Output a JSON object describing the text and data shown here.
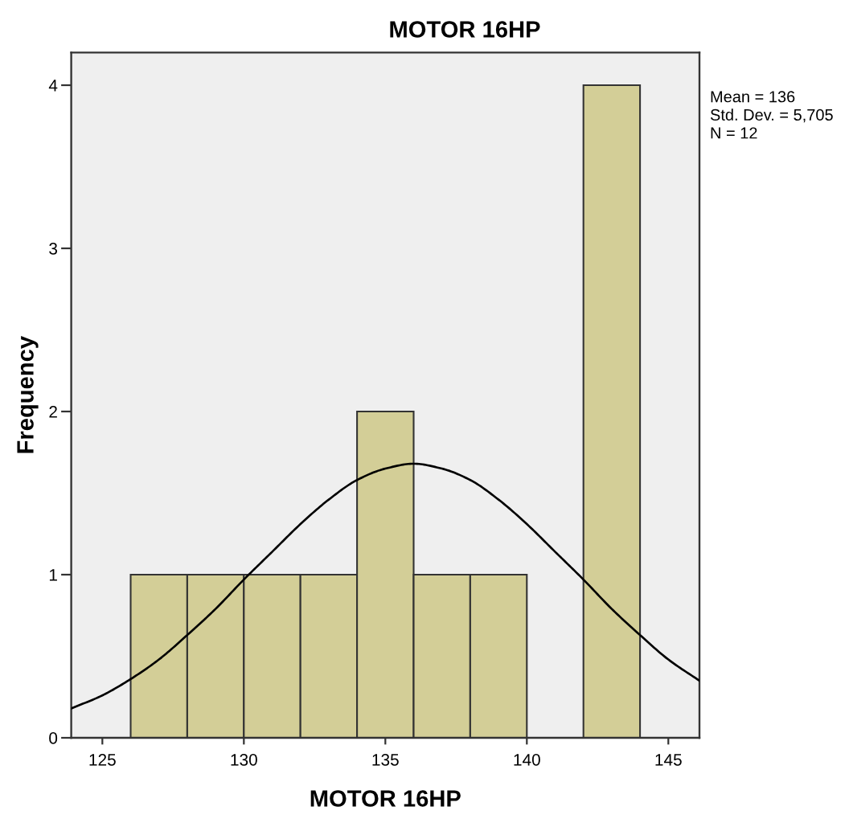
{
  "chart_data": {
    "type": "histogram",
    "title": "MOTOR 16HP",
    "xlabel": "MOTOR 16HP",
    "ylabel": "Frequency",
    "series": [
      {
        "color": "#d3ce97",
        "bins": [
          126,
          128,
          130,
          132,
          134,
          136,
          138,
          140,
          142,
          144
        ],
        "values": [
          1,
          1,
          1,
          1,
          2,
          1,
          1,
          0,
          4
        ]
      },
      {
        "type": "line",
        "color": "#000000",
        "x": [
          123.9,
          125,
          126,
          127,
          128,
          129,
          130,
          131,
          132,
          133,
          134,
          135,
          136,
          137,
          138,
          139,
          140,
          141,
          142,
          143,
          144,
          145,
          146.1
        ],
        "values": [
          0.18,
          0.26,
          0.36,
          0.48,
          0.63,
          0.79,
          0.97,
          1.14,
          1.31,
          1.46,
          1.58,
          1.65,
          1.68,
          1.65,
          1.58,
          1.46,
          1.31,
          1.14,
          0.97,
          0.79,
          0.63,
          0.48,
          0.35
        ]
      }
    ],
    "xlim": [
      123.9,
      146.1
    ],
    "xticks": [
      125,
      130,
      135,
      140,
      145
    ],
    "ylim": [
      0,
      4.2
    ],
    "yticks": [
      0,
      1,
      2,
      3,
      4
    ],
    "grid": false,
    "annotations": [
      "Mean = 136",
      "Std. Dev. = 5,705",
      "N = 12"
    ]
  }
}
